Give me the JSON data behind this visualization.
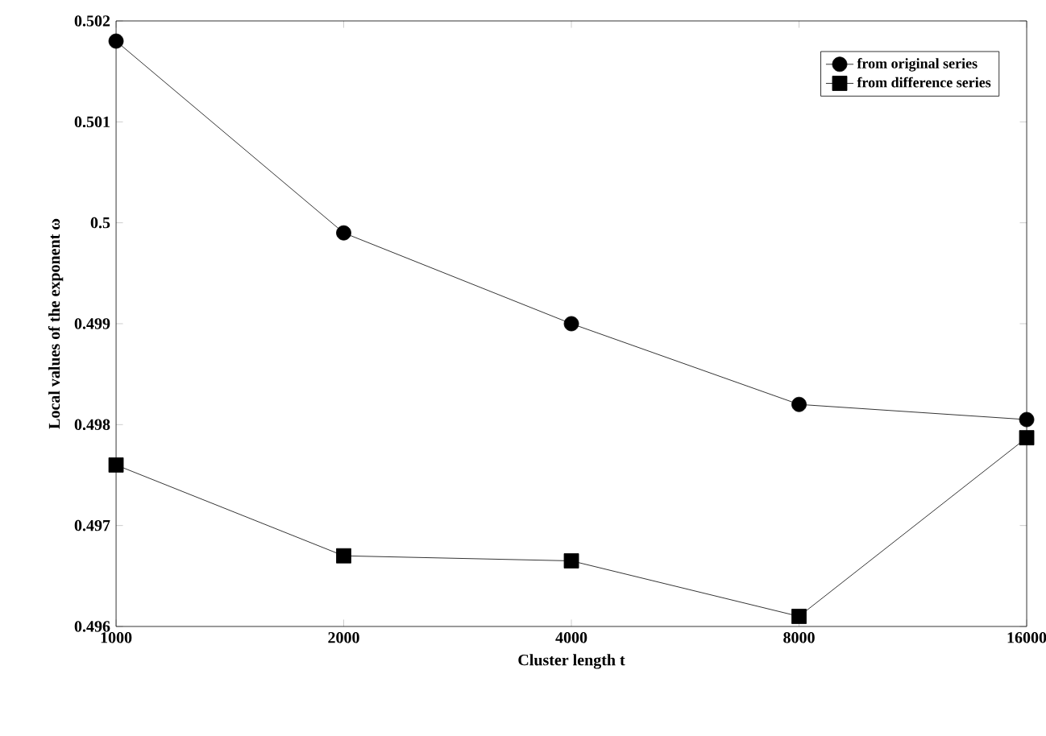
{
  "chart_data": {
    "type": "line",
    "xlabel": "Cluster length t",
    "ylabel": "Local values of the exponent ω",
    "x": [
      1000,
      2000,
      4000,
      8000,
      16000
    ],
    "log": "x",
    "xlim": [
      1000,
      16000
    ],
    "xticks": [
      1000,
      2000,
      4000,
      8000,
      16000
    ],
    "ylim": [
      0.496,
      0.502
    ],
    "yticks": [
      0.496,
      0.497,
      0.498,
      0.499,
      0.5,
      0.501,
      0.502
    ],
    "legend": "top right",
    "grid": false,
    "line_style": "solid",
    "series": [
      {
        "name": "from original series",
        "color": "#000000",
        "marker": "circle",
        "values": [
          0.5018,
          0.4999,
          0.499,
          0.4982,
          0.49805
        ]
      },
      {
        "name": "from difference series",
        "color": "#000000",
        "marker": "square",
        "values": [
          0.4976,
          0.4967,
          0.49665,
          0.4961,
          0.49787
        ]
      }
    ]
  }
}
